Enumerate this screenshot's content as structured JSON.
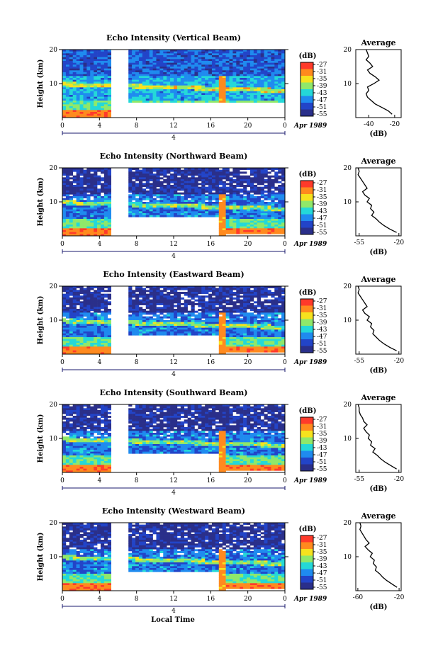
{
  "chart_data": [
    {
      "type": "heatmap",
      "title": "Echo Intensity (Vertical Beam)",
      "ylabel": "Height (km)",
      "y_ticks": [
        "20",
        "10"
      ],
      "x_ticks": [
        "0",
        "4",
        "8",
        "12",
        "16",
        "20",
        "0"
      ],
      "date_label": "4",
      "date_suffix": "Apr 1989",
      "ylim": [
        0,
        20
      ],
      "xlim": [
        0,
        24
      ],
      "gaps": [
        [
          5.2,
          7.3
        ],
        [
          7.3,
          24
        ]
      ],
      "gap_heights": [
        [
          0,
          20
        ],
        [
          0,
          4.2
        ]
      ],
      "colorbar_unit": "(dB)",
      "colorbar_labels": [
        "-27",
        "-31",
        "-35",
        "-39",
        "-43",
        "-47",
        "-51",
        "-55"
      ],
      "profile": {
        "title": "Average",
        "xlabel": "(dB)",
        "x_ticks": [
          "-40",
          "-20"
        ],
        "y_ticks": [
          "20",
          "10"
        ],
        "xlim": [
          -50,
          -15
        ],
        "ylim": [
          0,
          20
        ],
        "x": [
          -42,
          -41,
          -40,
          -42,
          -39,
          -37,
          -41,
          -39,
          -35,
          -32,
          -36,
          -41,
          -40,
          -42,
          -41,
          -38,
          -35,
          -30,
          -25,
          -22
        ],
        "y": [
          20,
          19,
          18,
          17,
          16,
          15,
          14,
          13,
          12,
          11,
          10,
          9,
          8,
          7,
          6,
          5,
          4,
          3,
          2,
          1
        ]
      }
    },
    {
      "type": "heatmap",
      "title": "Echo Intensity (Northward Beam)",
      "ylabel": "Height (km)",
      "y_ticks": [
        "20",
        "10"
      ],
      "x_ticks": [
        "0",
        "4",
        "8",
        "12",
        "16",
        "20",
        "0"
      ],
      "date_label": "4",
      "date_suffix": "Apr 1989",
      "ylim": [
        0,
        20
      ],
      "xlim": [
        0,
        24
      ],
      "colorbar_unit": "(dB)",
      "colorbar_labels": [
        "-27",
        "-31",
        "-35",
        "-39",
        "-43",
        "-47",
        "-51",
        "-55"
      ],
      "profile": {
        "title": "Average",
        "xlabel": "(dB)",
        "x_ticks": [
          "-55",
          "-20"
        ],
        "y_ticks": [
          "20",
          "10"
        ],
        "xlim": [
          -58,
          -18
        ],
        "ylim": [
          0,
          20
        ],
        "x": [
          -56,
          -55,
          -56,
          -54,
          -52,
          -50,
          -48,
          -52,
          -50,
          -46,
          -48,
          -44,
          -45,
          -42,
          -44,
          -40,
          -37,
          -33,
          -28,
          -22
        ],
        "y": [
          20,
          19,
          18,
          17,
          16,
          15,
          14,
          13,
          12,
          11,
          10,
          9,
          8,
          7,
          6,
          5,
          4,
          3,
          2,
          1
        ]
      }
    },
    {
      "type": "heatmap",
      "title": "Echo Intensity (Eastward Beam)",
      "ylabel": "Height (km)",
      "y_ticks": [
        "20",
        "10"
      ],
      "x_ticks": [
        "0",
        "4",
        "8",
        "12",
        "16",
        "20",
        "0"
      ],
      "date_label": "4",
      "date_suffix": "Apr 1989",
      "ylim": [
        0,
        20
      ],
      "xlim": [
        0,
        24
      ],
      "colorbar_unit": "(dB)",
      "colorbar_labels": [
        "-27",
        "-31",
        "-35",
        "-39",
        "-43",
        "-47",
        "-51",
        "-55"
      ],
      "profile": {
        "title": "Average",
        "xlabel": "(dB)",
        "x_ticks": [
          "-55",
          "-20"
        ],
        "y_ticks": [
          "20",
          "10"
        ],
        "xlim": [
          -58,
          -18
        ],
        "ylim": [
          0,
          20
        ],
        "x": [
          -56,
          -55,
          -56,
          -54,
          -52,
          -50,
          -48,
          -52,
          -50,
          -46,
          -48,
          -44,
          -45,
          -42,
          -43,
          -40,
          -37,
          -33,
          -28,
          -22
        ],
        "y": [
          20,
          19,
          18,
          17,
          16,
          15,
          14,
          13,
          12,
          11,
          10,
          9,
          8,
          7,
          6,
          5,
          4,
          3,
          2,
          1
        ]
      }
    },
    {
      "type": "heatmap",
      "title": "Echo Intensity (Southward Beam)",
      "ylabel": "Height (km)",
      "y_ticks": [
        "20",
        "10"
      ],
      "x_ticks": [
        "0",
        "4",
        "8",
        "12",
        "16",
        "20",
        "0"
      ],
      "date_label": "4",
      "date_suffix": "Apr 1989",
      "ylim": [
        0,
        20
      ],
      "xlim": [
        0,
        24
      ],
      "colorbar_unit": "(dB)",
      "colorbar_labels": [
        "-27",
        "-31",
        "-35",
        "-39",
        "-43",
        "-47",
        "-51",
        "-55"
      ],
      "profile": {
        "title": "Average",
        "xlabel": "(dB)",
        "x_ticks": [
          "-55",
          "-20"
        ],
        "y_ticks": [
          "20",
          "10"
        ],
        "xlim": [
          -58,
          -18
        ],
        "ylim": [
          0,
          20
        ],
        "x": [
          -56,
          -55,
          -55,
          -54,
          -52,
          -51,
          -48,
          -51,
          -49,
          -46,
          -47,
          -44,
          -45,
          -41,
          -43,
          -39,
          -36,
          -32,
          -27,
          -22
        ],
        "y": [
          20,
          19,
          18,
          17,
          16,
          15,
          14,
          13,
          12,
          11,
          10,
          9,
          8,
          7,
          6,
          5,
          4,
          3,
          2,
          1
        ]
      }
    },
    {
      "type": "heatmap",
      "title": "Echo Intensity (Westward Beam)",
      "ylabel": "Height (km)",
      "y_ticks": [
        "20",
        "10"
      ],
      "x_ticks": [
        "0",
        "4",
        "8",
        "12",
        "16",
        "20",
        "0"
      ],
      "date_label": "4",
      "date_suffix": "Apr 1989",
      "ylim": [
        0,
        20
      ],
      "xlim": [
        0,
        24
      ],
      "colorbar_unit": "(dB)",
      "colorbar_labels": [
        "-27",
        "-31",
        "-35",
        "-39",
        "-43",
        "-47",
        "-51",
        "-55"
      ],
      "profile": {
        "title": "Average",
        "xlabel": "(dB)",
        "x_ticks": [
          "-60",
          "-20"
        ],
        "y_ticks": [
          "20",
          "10"
        ],
        "xlim": [
          -62,
          -18
        ],
        "ylim": [
          0,
          20
        ],
        "x": [
          -58,
          -57,
          -58,
          -56,
          -54,
          -52,
          -49,
          -53,
          -50,
          -46,
          -48,
          -44,
          -45,
          -42,
          -43,
          -39,
          -36,
          -32,
          -27,
          -22
        ],
        "y": [
          20,
          19,
          18,
          17,
          16,
          15,
          14,
          13,
          12,
          11,
          10,
          9,
          8,
          7,
          6,
          5,
          4,
          3,
          2,
          1
        ]
      }
    }
  ],
  "xlabel": "Local Time",
  "colors": {
    "scale": [
      "#ff3a2a",
      "#ff8a1e",
      "#f6e21e",
      "#8fe86a",
      "#24d8d8",
      "#1f8bef",
      "#2244c8",
      "#2a2f8a"
    ]
  }
}
